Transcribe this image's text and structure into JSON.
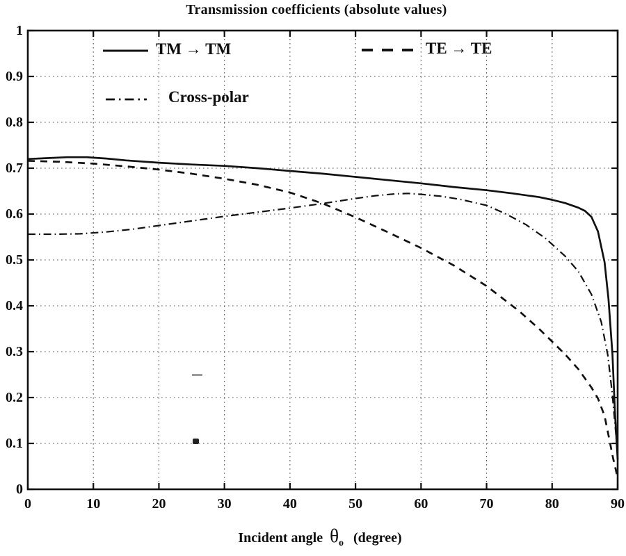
{
  "chart_data": {
    "type": "line",
    "title": "Transmission coefficients (absolute values)",
    "xlabel": "Incident angle θo (degree)",
    "xlabel_parts": {
      "text": "Incident angle",
      "symbol": "θ",
      "symbol_sub": "o",
      "unit": "(degree)"
    },
    "ylabel": "",
    "xlim": [
      0,
      90
    ],
    "ylim": [
      0,
      1
    ],
    "x_ticks": [
      0,
      10,
      20,
      30,
      40,
      50,
      60,
      70,
      80,
      90
    ],
    "x_tick_labels": [
      "0",
      "10",
      "20",
      "30",
      "40",
      "50",
      "60",
      "70",
      "80",
      "90"
    ],
    "y_ticks": [
      0,
      0.1,
      0.2,
      0.3,
      0.4,
      0.5,
      0.6,
      0.7,
      0.8,
      0.9,
      1
    ],
    "y_tick_labels": [
      "0",
      "0.1",
      "0.2",
      "0.3",
      "0.4",
      "0.5",
      "0.6",
      "0.7",
      "0.8",
      "0.9",
      "1"
    ],
    "grid": "dotted",
    "legend_position": "inside top-left, no box",
    "line_color": "#111111",
    "grid_color": "#3c3c3c",
    "series": [
      {
        "name": "TM → TM",
        "style": "solid",
        "x": [
          0,
          3,
          6,
          9,
          12,
          15,
          20,
          25,
          30,
          35,
          40,
          45,
          50,
          55,
          60,
          65,
          70,
          74,
          78,
          80,
          82,
          84,
          85,
          86,
          87,
          88,
          88.6,
          89.2,
          89.6,
          90
        ],
        "y": [
          0.72,
          0.722,
          0.724,
          0.724,
          0.721,
          0.717,
          0.712,
          0.708,
          0.705,
          0.7,
          0.694,
          0.688,
          0.681,
          0.674,
          0.667,
          0.659,
          0.652,
          0.645,
          0.637,
          0.631,
          0.624,
          0.614,
          0.607,
          0.594,
          0.562,
          0.495,
          0.415,
          0.295,
          0.165,
          0.065
        ]
      },
      {
        "name": "TE → TE",
        "style": "dashed",
        "x": [
          0,
          5,
          10,
          15,
          20,
          25,
          30,
          35,
          40,
          45,
          50,
          55,
          60,
          65,
          70,
          75,
          78,
          80,
          82,
          84,
          86,
          87,
          88,
          88.6,
          89.3,
          90
        ],
        "y": [
          0.716,
          0.714,
          0.71,
          0.704,
          0.697,
          0.688,
          0.677,
          0.664,
          0.647,
          0.623,
          0.593,
          0.56,
          0.526,
          0.488,
          0.443,
          0.388,
          0.35,
          0.322,
          0.294,
          0.262,
          0.222,
          0.198,
          0.16,
          0.118,
          0.068,
          0.025
        ]
      },
      {
        "name": "Cross-polar",
        "style": "dashdot",
        "x": [
          0,
          4,
          8,
          12,
          16,
          20,
          25,
          30,
          35,
          40,
          45,
          50,
          53,
          56,
          58,
          60,
          63,
          66,
          70,
          73,
          76,
          79,
          82,
          84,
          86,
          87.5,
          88.5,
          89.2,
          89.7,
          90
        ],
        "y": [
          0.556,
          0.556,
          0.557,
          0.561,
          0.567,
          0.575,
          0.585,
          0.595,
          0.604,
          0.613,
          0.623,
          0.634,
          0.64,
          0.644,
          0.645,
          0.643,
          0.639,
          0.632,
          0.619,
          0.6,
          0.577,
          0.547,
          0.508,
          0.475,
          0.425,
          0.365,
          0.292,
          0.205,
          0.125,
          0.075
        ]
      }
    ]
  }
}
